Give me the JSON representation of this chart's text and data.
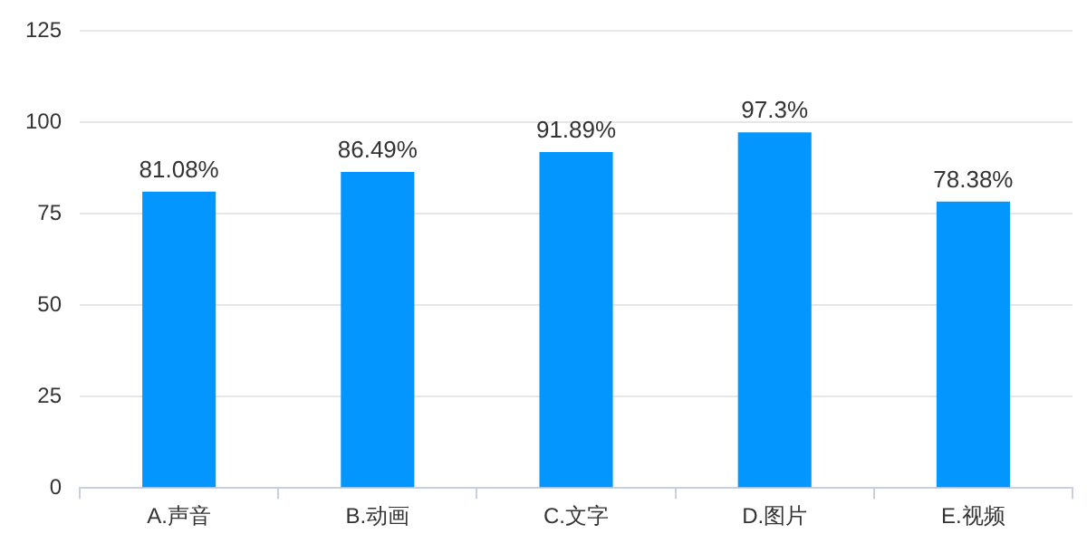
{
  "chart_data": {
    "type": "bar",
    "categories": [
      "A.声音",
      "B.动画",
      "C.文字",
      "D.图片",
      "E.视频"
    ],
    "values": [
      81.08,
      86.49,
      91.89,
      97.3,
      78.38
    ],
    "value_labels": [
      "81.08%",
      "86.49%",
      "91.89%",
      "97.3%",
      "78.38%"
    ],
    "color": "#0496ff",
    "ylim": [
      0,
      125
    ],
    "yticks": [
      0,
      25,
      50,
      75,
      100,
      125
    ],
    "grid": "y",
    "legend": false
  }
}
